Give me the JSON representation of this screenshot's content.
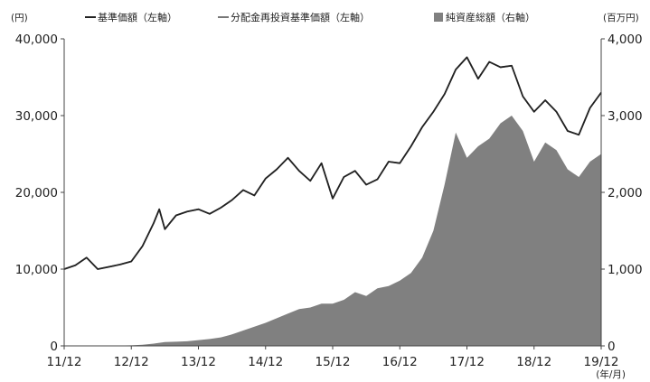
{
  "chart_data": {
    "type": "line",
    "left_unit": "(円)",
    "right_unit": "(百万円)",
    "x_unit": "(年/月)",
    "legend": [
      {
        "marker": "line",
        "label": "基準価額（左軸）",
        "color": "#222222"
      },
      {
        "marker": "line",
        "label": "分配金再投資基準価額（左軸）",
        "color": "#777777"
      },
      {
        "marker": "square",
        "label": "純資産総額（右軸）",
        "color": "#808080"
      }
    ],
    "x_ticks": [
      "11/12",
      "12/12",
      "13/12",
      "14/12",
      "15/12",
      "16/12",
      "17/12",
      "18/12",
      "19/12"
    ],
    "left_axis": {
      "ylim": [
        0,
        40000
      ],
      "ticks": [
        "0",
        "10,000",
        "20,000",
        "30,000",
        "40,000"
      ]
    },
    "right_axis": {
      "ylim": [
        0,
        4000
      ],
      "ticks": [
        "0",
        "1,000",
        "2,000",
        "3,000",
        "4,000"
      ]
    },
    "grid": false,
    "x_values": [
      "11/12",
      "12/02",
      "12/04",
      "12/06",
      "12/08",
      "12/10",
      "12/12",
      "13/02",
      "13/04",
      "13/05",
      "13/06",
      "13/08",
      "13/10",
      "13/12",
      "14/02",
      "14/04",
      "14/06",
      "14/08",
      "14/10",
      "14/12",
      "15/02",
      "15/04",
      "15/06",
      "15/08",
      "15/10",
      "15/12",
      "16/02",
      "16/04",
      "16/06",
      "16/08",
      "16/10",
      "16/12",
      "17/02",
      "17/04",
      "17/06",
      "17/08",
      "17/10",
      "17/12",
      "18/02",
      "18/04",
      "18/06",
      "18/08",
      "18/10",
      "18/12",
      "19/02",
      "19/04",
      "19/06",
      "19/08",
      "19/10",
      "19/12"
    ],
    "series": [
      {
        "name": "基準価額（左軸）",
        "axis": "left",
        "color": "#222222",
        "values": [
          10000,
          10500,
          11500,
          10000,
          10300,
          10600,
          11000,
          13000,
          16000,
          17800,
          15200,
          17000,
          17500,
          17800,
          17200,
          18000,
          19000,
          20300,
          19600,
          21800,
          23000,
          24500,
          22800,
          21500,
          23800,
          19200,
          22000,
          22800,
          21000,
          21700,
          24000,
          23800,
          26000,
          28500,
          30500,
          32800,
          36000,
          37600,
          34800,
          37000,
          36300,
          36500,
          32500,
          30500,
          32000,
          30500,
          28000,
          27500,
          31000,
          33000
        ]
      },
      {
        "name": "分配金再投資基準価額（左軸）",
        "axis": "left",
        "color": "#777777",
        "values": [
          10000,
          10500,
          11500,
          10000,
          10300,
          10600,
          11000,
          13000,
          16000,
          17800,
          15200,
          17000,
          17500,
          17800,
          17200,
          18000,
          19000,
          20300,
          19600,
          21800,
          23000,
          24500,
          22800,
          21500,
          23800,
          19200,
          22000,
          22800,
          21000,
          21700,
          24000,
          23800,
          26000,
          28500,
          30500,
          32800,
          36000,
          37600,
          34800,
          37000,
          36300,
          36500,
          32500,
          30500,
          32000,
          30500,
          28000,
          27500,
          31000,
          33000
        ]
      },
      {
        "name": "純資産総額（右軸）",
        "axis": "right",
        "type": "area",
        "color": "#808080",
        "values": [
          0,
          0,
          0,
          0,
          0,
          5,
          8,
          15,
          30,
          40,
          50,
          55,
          60,
          75,
          90,
          110,
          150,
          200,
          250,
          300,
          360,
          420,
          480,
          500,
          550,
          550,
          600,
          700,
          650,
          750,
          780,
          850,
          950,
          1150,
          1500,
          2100,
          2780,
          2450,
          2600,
          2700,
          2900,
          3000,
          2800,
          2400,
          2650,
          2550,
          2300,
          2200,
          2400,
          2500
        ]
      }
    ]
  }
}
